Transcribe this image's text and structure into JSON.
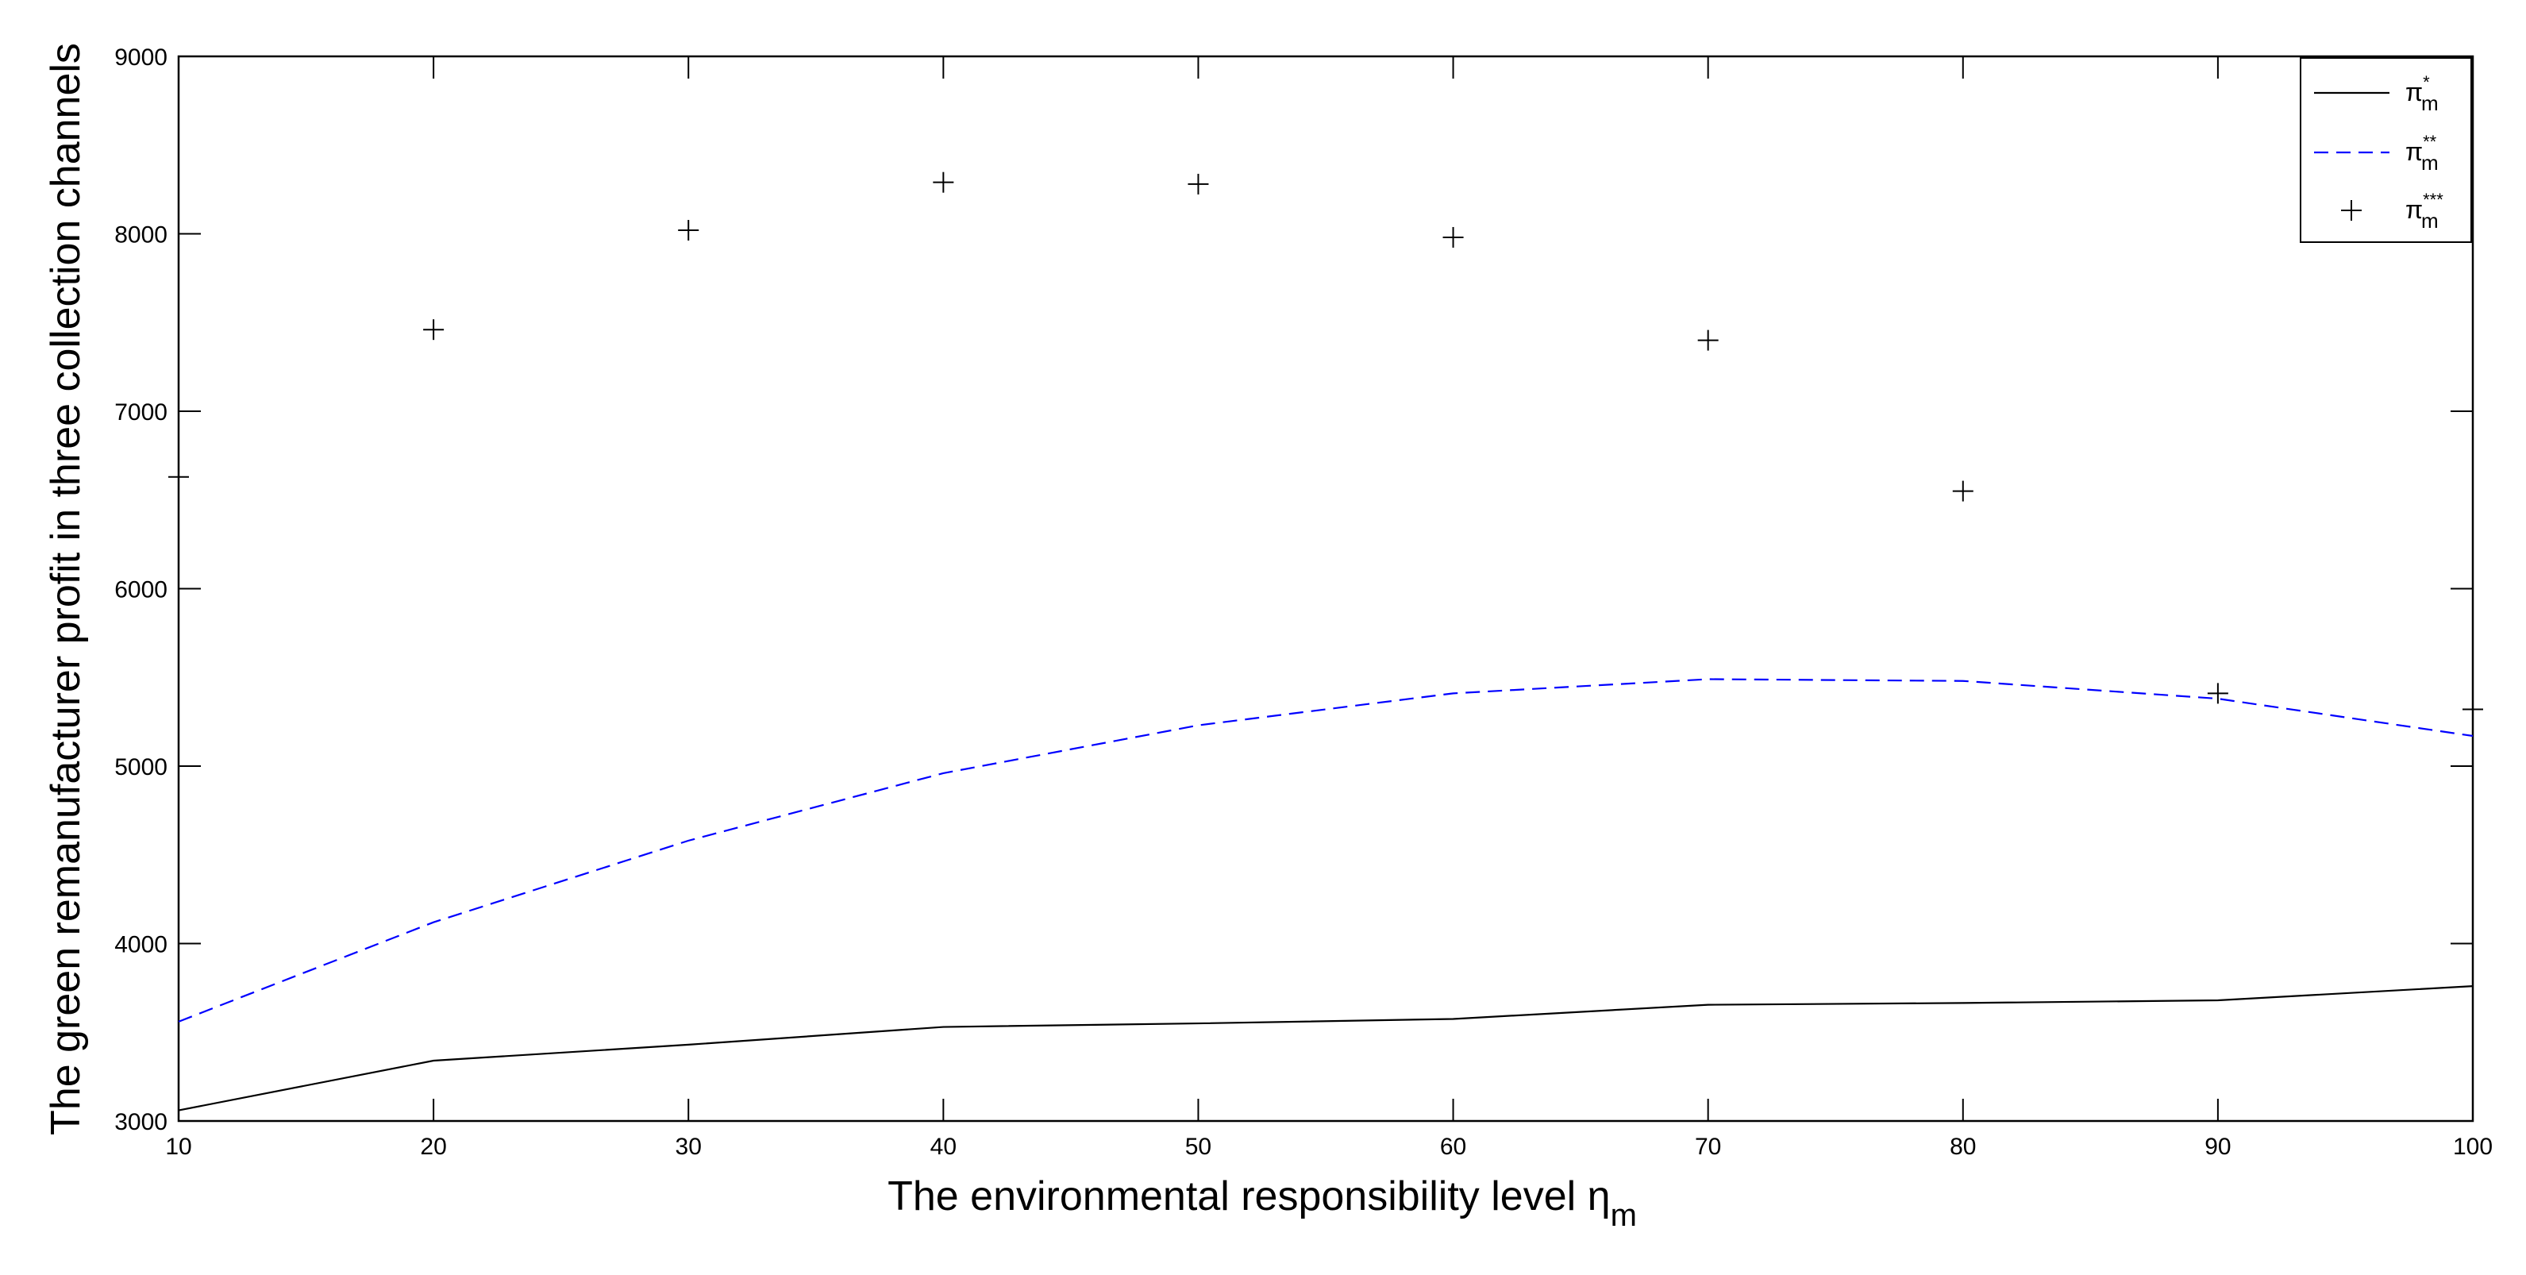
{
  "chart_data": {
    "type": "line",
    "xlabel": "The environmental responsibility level η",
    "xlabel_subscript": "m",
    "ylabel": "The green remanufacturer profit in three collection channels",
    "xlim": [
      10,
      100
    ],
    "ylim": [
      3000,
      9000
    ],
    "x_ticks": [
      "10",
      "20",
      "30",
      "40",
      "50",
      "60",
      "70",
      "80",
      "90",
      "100"
    ],
    "y_ticks": [
      "3000",
      "4000",
      "5000",
      "6000",
      "7000",
      "8000",
      "9000"
    ],
    "grid": false,
    "legend_position": "top-right",
    "series": [
      {
        "name": "π",
        "name_sub": "m",
        "name_sup": "*",
        "style": "solid",
        "color": "#000000",
        "x": [
          10,
          20,
          30,
          40,
          50,
          60,
          70,
          80,
          90,
          100
        ],
        "values": [
          3060,
          3340,
          3430,
          3530,
          3550,
          3575,
          3655,
          3665,
          3680,
          3760
        ]
      },
      {
        "name": "π",
        "name_sub": "m",
        "name_sup": "**",
        "style": "dashed",
        "color": "#0000ff",
        "x": [
          10,
          20,
          30,
          40,
          50,
          60,
          70,
          80,
          90,
          100
        ],
        "values": [
          3560,
          4120,
          4580,
          4960,
          5230,
          5410,
          5490,
          5480,
          5380,
          5170
        ]
      },
      {
        "name": "π",
        "name_sub": "m",
        "name_sup": "***",
        "style": "marker-plus",
        "color": "#000000",
        "x": [
          10,
          20,
          30,
          40,
          50,
          60,
          70,
          80,
          90,
          100
        ],
        "values": [
          6630,
          7460,
          8020,
          8290,
          8280,
          7980,
          7400,
          6550,
          5410,
          5320
        ]
      }
    ]
  }
}
